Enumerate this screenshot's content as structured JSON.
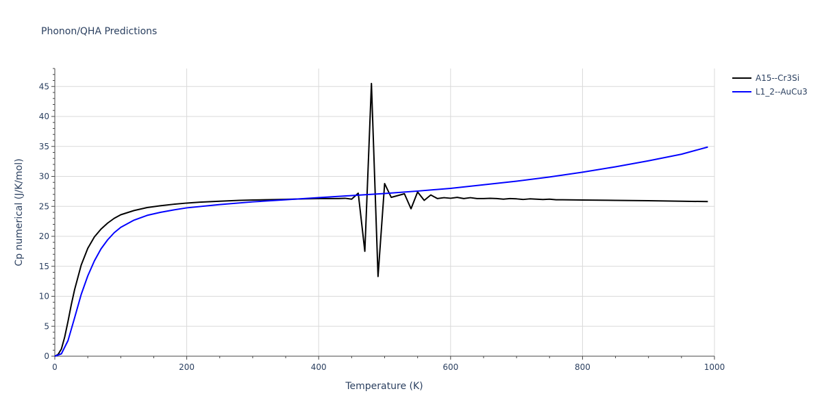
{
  "chart_data": {
    "type": "line",
    "title": "Phonon/QHA Predictions",
    "xlabel": "Temperature (K)",
    "ylabel": "Cp numerical (J/K/mol)",
    "xlim": [
      0,
      1000
    ],
    "ylim": [
      0,
      48
    ],
    "x_ticks": [
      0,
      200,
      400,
      600,
      800,
      1000
    ],
    "y_ticks": [
      0,
      5,
      10,
      15,
      20,
      25,
      30,
      35,
      40,
      45
    ],
    "grid": true,
    "legend_position": "top-right",
    "series": [
      {
        "name": "A15--Cr3Si",
        "color": "#000000",
        "x": [
          0,
          5,
          10,
          15,
          20,
          25,
          30,
          40,
          50,
          60,
          70,
          80,
          90,
          100,
          120,
          140,
          160,
          180,
          200,
          220,
          250,
          280,
          300,
          340,
          380,
          400,
          420,
          430,
          440,
          450,
          460,
          470,
          480,
          490,
          500,
          510,
          520,
          530,
          540,
          550,
          560,
          570,
          580,
          590,
          600,
          610,
          620,
          630,
          640,
          650,
          660,
          670,
          680,
          690,
          700,
          710,
          720,
          730,
          740,
          750,
          760,
          770,
          800,
          850,
          900,
          950,
          990
        ],
        "y": [
          0,
          0.3,
          1.2,
          3.2,
          5.8,
          8.6,
          11.1,
          15.2,
          18.0,
          19.9,
          21.2,
          22.2,
          23.0,
          23.6,
          24.3,
          24.8,
          25.1,
          25.35,
          25.55,
          25.7,
          25.85,
          26.0,
          26.05,
          26.15,
          26.25,
          26.3,
          26.3,
          26.3,
          26.35,
          26.2,
          27.2,
          17.5,
          45.5,
          13.3,
          28.8,
          26.5,
          26.8,
          27.1,
          24.6,
          27.4,
          26.0,
          26.9,
          26.3,
          26.45,
          26.35,
          26.5,
          26.3,
          26.45,
          26.3,
          26.3,
          26.35,
          26.3,
          26.2,
          26.3,
          26.25,
          26.15,
          26.25,
          26.2,
          26.15,
          26.2,
          26.1,
          26.1,
          26.05,
          26.0,
          25.95,
          25.85,
          25.8
        ]
      },
      {
        "name": "L1_2--AuCu3",
        "color": "#0000ff",
        "x": [
          0,
          10,
          20,
          30,
          40,
          50,
          60,
          70,
          80,
          90,
          100,
          120,
          140,
          160,
          180,
          200,
          250,
          300,
          350,
          400,
          450,
          500,
          550,
          600,
          650,
          700,
          750,
          800,
          850,
          900,
          950,
          990
        ],
        "y": [
          0,
          0.4,
          2.6,
          6.4,
          10.3,
          13.4,
          15.9,
          17.9,
          19.4,
          20.6,
          21.5,
          22.7,
          23.5,
          24.0,
          24.4,
          24.75,
          25.3,
          25.75,
          26.1,
          26.45,
          26.8,
          27.15,
          27.55,
          28.0,
          28.6,
          29.2,
          29.9,
          30.7,
          31.6,
          32.6,
          33.7,
          34.9
        ]
      }
    ]
  }
}
